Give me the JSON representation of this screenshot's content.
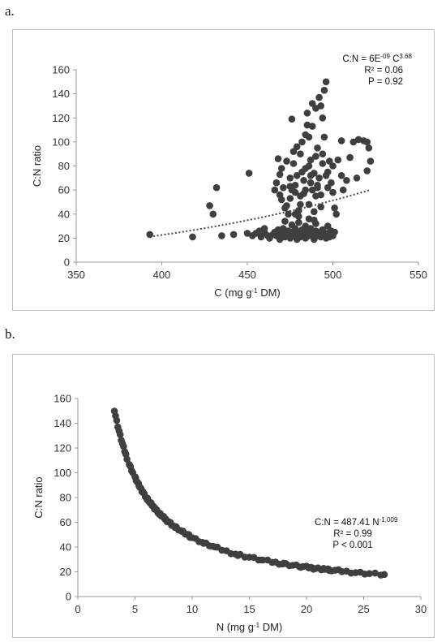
{
  "panels": {
    "a": {
      "letter": "a."
    },
    "b": {
      "letter": "b."
    }
  },
  "colors": {
    "point": "#3f3f3f",
    "trend": "#4a4a4a",
    "axis": "#9a9a9a",
    "frame": "#bdbdbd"
  },
  "chart_data": [
    {
      "type": "scatter",
      "xlabel": {
        "pre": "C (mg g",
        "sup": "-1",
        "post": " DM)"
      },
      "ylabel": "C:N ratio",
      "xlim": [
        350,
        550
      ],
      "ylim": [
        0,
        160
      ],
      "xticks": [
        "350",
        "400",
        "450",
        "500",
        "550"
      ],
      "yticks": [
        "0",
        "20",
        "40",
        "60",
        "80",
        "100",
        "120",
        "140",
        "160"
      ],
      "grid": false,
      "trendline": {
        "style": "dotted",
        "model": "power",
        "a": 6e-09,
        "b": 3.68,
        "x": [
          393,
          522
        ]
      },
      "annotation": {
        "eq_pre": "C:N = 6E",
        "eq_sup1": "-09",
        "eq_mid": " C",
        "eq_sup2": "3.68",
        "r2": "R² = 0.06",
        "p": "P = 0.92"
      },
      "points": [
        [
          393,
          23
        ],
        [
          418,
          21
        ],
        [
          428,
          47
        ],
        [
          430,
          40
        ],
        [
          432,
          62
        ],
        [
          435,
          22
        ],
        [
          442,
          23
        ],
        [
          450,
          24
        ],
        [
          451,
          74
        ],
        [
          453,
          22
        ],
        [
          455,
          24
        ],
        [
          458,
          21
        ],
        [
          460,
          25
        ],
        [
          462,
          22
        ],
        [
          465,
          23
        ],
        [
          466,
          60
        ],
        [
          467,
          66
        ],
        [
          468,
          86
        ],
        [
          469,
          56
        ],
        [
          470,
          52
        ],
        [
          470,
          78
        ],
        [
          471,
          62
        ],
        [
          472,
          45
        ],
        [
          473,
          47
        ],
        [
          474,
          40
        ],
        [
          475,
          53
        ],
        [
          475,
          70
        ],
        [
          476,
          119
        ],
        [
          476,
          60
        ],
        [
          477,
          82
        ],
        [
          478,
          64
        ],
        [
          479,
          72
        ],
        [
          480,
          38
        ],
        [
          480,
          43
        ],
        [
          481,
          55
        ],
        [
          481,
          90
        ],
        [
          482,
          100
        ],
        [
          482,
          26
        ],
        [
          483,
          57
        ],
        [
          484,
          60
        ],
        [
          484,
          78
        ],
        [
          485,
          114
        ],
        [
          485,
          124
        ],
        [
          486,
          104
        ],
        [
          486,
          48
        ],
        [
          487,
          66
        ],
        [
          487,
          85
        ],
        [
          488,
          132
        ],
        [
          488,
          60
        ],
        [
          489,
          74
        ],
        [
          489,
          35
        ],
        [
          490,
          128
        ],
        [
          490,
          88
        ],
        [
          491,
          95
        ],
        [
          491,
          62
        ],
        [
          492,
          137
        ],
        [
          492,
          70
        ],
        [
          493,
          130
        ],
        [
          493,
          56
        ],
        [
          494,
          120
        ],
        [
          494,
          82
        ],
        [
          495,
          143
        ],
        [
          495,
          104
        ],
        [
          496,
          150
        ],
        [
          496,
          72
        ],
        [
          497,
          75
        ],
        [
          497,
          62
        ],
        [
          498,
          84
        ],
        [
          499,
          66
        ],
        [
          500,
          58
        ],
        [
          500,
          80
        ],
        [
          501,
          45
        ],
        [
          502,
          40
        ],
        [
          503,
          85
        ],
        [
          505,
          101
        ],
        [
          505,
          72
        ],
        [
          506,
          60
        ],
        [
          508,
          68
        ],
        [
          510,
          87
        ],
        [
          512,
          100
        ],
        [
          514,
          70
        ],
        [
          515,
          102
        ],
        [
          518,
          101
        ],
        [
          520,
          100
        ],
        [
          521,
          95
        ],
        [
          522,
          84
        ],
        [
          520,
          76
        ],
        [
          466,
          25
        ],
        [
          467,
          22
        ],
        [
          468,
          27
        ],
        [
          469,
          19
        ],
        [
          470,
          23
        ],
        [
          471,
          28
        ],
        [
          472,
          21
        ],
        [
          473,
          24
        ],
        [
          474,
          26
        ],
        [
          475,
          20
        ],
        [
          476,
          25
        ],
        [
          477,
          22
        ],
        [
          478,
          28
        ],
        [
          479,
          19
        ],
        [
          480,
          24
        ],
        [
          481,
          21
        ],
        [
          482,
          27
        ],
        [
          483,
          23
        ],
        [
          484,
          20
        ],
        [
          485,
          25
        ],
        [
          486,
          22
        ],
        [
          487,
          28
        ],
        [
          488,
          24
        ],
        [
          489,
          19
        ],
        [
          490,
          26
        ],
        [
          491,
          22
        ],
        [
          492,
          25
        ],
        [
          493,
          21
        ],
        [
          494,
          27
        ],
        [
          495,
          23
        ],
        [
          496,
          20
        ],
        [
          497,
          24
        ],
        [
          498,
          21
        ],
        [
          499,
          26
        ],
        [
          500,
          22
        ],
        [
          501,
          25
        ],
        [
          460,
          28
        ],
        [
          463,
          20
        ],
        [
          457,
          26
        ],
        [
          476,
          31
        ],
        [
          480,
          33
        ],
        [
          484,
          30
        ],
        [
          490,
          32
        ],
        [
          497,
          30
        ],
        [
          486,
          36
        ],
        [
          472,
          34
        ],
        [
          478,
          40
        ],
        [
          489,
          42
        ],
        [
          493,
          46
        ],
        [
          481,
          48
        ],
        [
          475,
          63
        ],
        [
          478,
          58
        ],
        [
          483,
          68
        ],
        [
          487,
          72
        ],
        [
          491,
          64
        ],
        [
          469,
          73
        ],
        [
          473,
          84
        ],
        [
          477,
          92
        ],
        [
          482,
          75
        ],
        [
          486,
          80
        ],
        [
          490,
          55
        ],
        [
          494,
          90
        ],
        [
          479,
          96
        ],
        [
          484,
          106
        ],
        [
          488,
          113
        ]
      ]
    },
    {
      "type": "scatter",
      "xlabel": {
        "pre": "N (mg g",
        "sup": "-1",
        "post": " DM)"
      },
      "ylabel": "C:N ratio",
      "xlim": [
        0,
        30
      ],
      "ylim": [
        0,
        160
      ],
      "xticks": [
        "0",
        "5",
        "10",
        "15",
        "20",
        "25",
        "30"
      ],
      "yticks": [
        "0",
        "20",
        "40",
        "60",
        "80",
        "100",
        "120",
        "140",
        "160"
      ],
      "grid": false,
      "curve": {
        "model": "power",
        "a": 487.41,
        "b": -1.009,
        "x": [
          3.2,
          26.8
        ]
      },
      "annotation": {
        "eq_pre": "C:N = 487.41 N",
        "eq_sup": "-1,009",
        "r2": "R² = 0.99",
        "p": "P < 0.001"
      },
      "points_n": [
        3.2,
        3.3,
        3.4,
        3.5,
        3.6,
        3.7,
        3.8,
        3.9,
        4.0,
        4.1,
        4.2,
        4.3,
        4.5,
        4.6,
        4.7,
        4.8,
        5.0,
        5.1,
        5.2,
        5.3,
        5.4,
        5.5,
        5.6,
        5.7,
        5.8,
        5.9,
        6.0,
        6.1,
        6.2,
        6.3,
        6.4,
        6.5,
        6.6,
        6.7,
        6.8,
        6.9,
        7.0,
        7.1,
        7.2,
        7.3,
        7.4,
        7.5,
        7.6,
        7.7,
        7.8,
        7.9,
        8.0,
        8.2,
        8.4,
        8.6,
        8.8,
        9.0,
        9.2,
        9.4,
        9.6,
        9.8,
        10.0,
        10.3,
        10.6,
        10.9,
        11.2,
        11.5,
        11.8,
        12.2,
        12.6,
        13.0,
        13.4,
        13.8,
        14.2,
        14.6,
        15.0,
        15.4,
        15.8,
        16.2,
        16.6,
        17.0,
        17.3,
        17.6,
        17.9,
        18.2,
        18.5,
        18.8,
        19.1,
        19.4,
        19.7,
        20.0,
        20.2,
        20.4,
        20.6,
        20.8,
        21.0,
        21.3,
        21.6,
        21.9,
        22.2,
        22.5,
        22.8,
        23.1,
        23.5,
        23.9,
        24.3,
        24.7,
        25.1,
        25.5,
        26.0,
        26.5,
        26.8,
        5.05,
        5.35,
        5.65,
        6.05,
        6.35,
        6.75,
        7.15,
        7.55,
        8.1,
        8.5,
        9.1,
        9.7,
        11.0,
        12.0,
        14.0,
        16.0,
        18.0,
        19.5,
        20.5,
        21.5,
        22.0
      ]
    }
  ]
}
